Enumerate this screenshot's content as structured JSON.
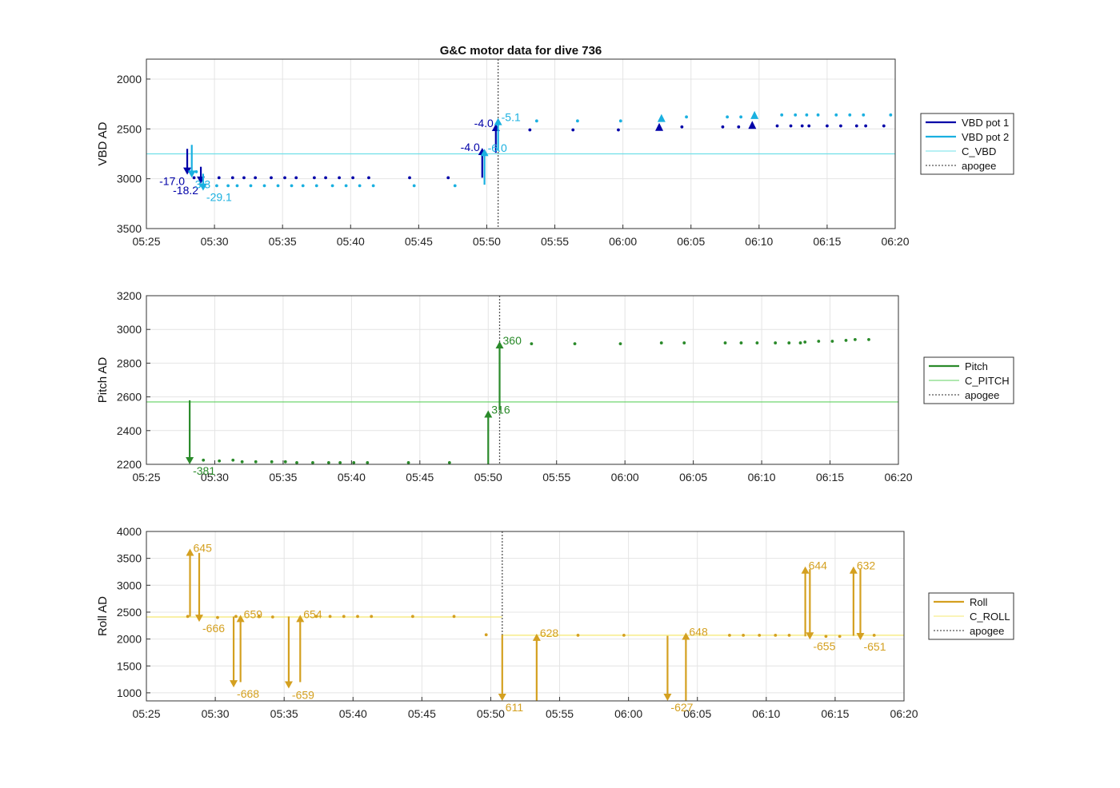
{
  "figure_title": "G&C motor data for dive 736",
  "apogee_time": "05:50:50",
  "chart_data": [
    {
      "type": "scatter",
      "title": "G&C motor data for dive 736",
      "ylabel": "VBD AD",
      "xlim": [
        "05:25",
        "06:20"
      ],
      "ylim": [
        1800,
        3500
      ],
      "y_reversed": true,
      "yticks": [
        2000,
        2500,
        3000,
        3500
      ],
      "xticks": [
        "05:25",
        "05:30",
        "05:35",
        "05:40",
        "05:45",
        "05:50",
        "05:55",
        "06:00",
        "06:05",
        "06:10",
        "06:15",
        "06:20"
      ],
      "grid": true,
      "legend_position": "right",
      "legend": [
        {
          "label": "VBD pot 1",
          "kind": "line",
          "color": "#0000a8"
        },
        {
          "label": "VBD pot 2",
          "kind": "line",
          "color": "#1ab0e0"
        },
        {
          "label": "C_VBD",
          "kind": "thin",
          "color": "#6fe0e8"
        },
        {
          "label": "apogee",
          "kind": "dotted",
          "color": "#555555"
        }
      ],
      "reference_line": {
        "name": "C_VBD",
        "y": 2750,
        "color": "#6fe0e8"
      },
      "series": [
        {
          "name": "VBD pot 1",
          "color": "#0000a8",
          "points": [
            [
              "05:28:30",
              2990
            ],
            [
              "05:30:20",
              2990
            ],
            [
              "05:31:20",
              2990
            ],
            [
              "05:32:10",
              2990
            ],
            [
              "05:33:00",
              2990
            ],
            [
              "05:34:10",
              2990
            ],
            [
              "05:35:10",
              2990
            ],
            [
              "05:36:00",
              2990
            ],
            [
              "05:37:20",
              2990
            ],
            [
              "05:38:10",
              2990
            ],
            [
              "05:39:10",
              2990
            ],
            [
              "05:40:10",
              2990
            ],
            [
              "05:41:20",
              2990
            ],
            [
              "05:44:20",
              2990
            ],
            [
              "05:47:10",
              2990
            ],
            [
              "05:53:10",
              2510
            ],
            [
              "05:56:20",
              2510
            ],
            [
              "05:59:40",
              2510
            ],
            [
              "06:04:20",
              2480
            ],
            [
              "06:07:20",
              2480
            ],
            [
              "06:08:30",
              2480
            ],
            [
              "06:11:20",
              2470
            ],
            [
              "06:12:20",
              2470
            ],
            [
              "06:13:10",
              2470
            ],
            [
              "06:13:40",
              2470
            ],
            [
              "06:15:00",
              2470
            ],
            [
              "06:16:00",
              2470
            ],
            [
              "06:17:10",
              2470
            ],
            [
              "06:17:50",
              2470
            ],
            [
              "06:19:10",
              2470
            ]
          ]
        },
        {
          "name": "VBD pot 2",
          "color": "#1ab0e0",
          "points": [
            [
              "05:28:40",
              2930
            ],
            [
              "05:30:10",
              3070
            ],
            [
              "05:31:00",
              3070
            ],
            [
              "05:31:40",
              3070
            ],
            [
              "05:32:40",
              3070
            ],
            [
              "05:33:40",
              3070
            ],
            [
              "05:34:40",
              3070
            ],
            [
              "05:35:40",
              3070
            ],
            [
              "05:36:30",
              3070
            ],
            [
              "05:37:30",
              3070
            ],
            [
              "05:38:40",
              3070
            ],
            [
              "05:39:40",
              3070
            ],
            [
              "05:40:40",
              3070
            ],
            [
              "05:41:40",
              3070
            ],
            [
              "05:44:40",
              3070
            ],
            [
              "05:47:40",
              3070
            ],
            [
              "05:53:40",
              2420
            ],
            [
              "05:56:40",
              2420
            ],
            [
              "05:59:50",
              2420
            ],
            [
              "06:04:40",
              2380
            ],
            [
              "06:07:40",
              2380
            ],
            [
              "06:08:40",
              2380
            ],
            [
              "06:11:40",
              2360
            ],
            [
              "06:12:40",
              2360
            ],
            [
              "06:13:30",
              2360
            ],
            [
              "06:14:20",
              2360
            ],
            [
              "06:15:40",
              2360
            ],
            [
              "06:16:40",
              2360
            ],
            [
              "06:17:40",
              2360
            ],
            [
              "06:19:40",
              2360
            ]
          ]
        }
      ],
      "arrows": [
        {
          "series": "VBD pot 1",
          "t": "05:28:00",
          "from": 2700,
          "to": 2960,
          "label": "-17.0",
          "label_side": "left"
        },
        {
          "series": "VBD pot 1",
          "t": "05:29:00",
          "from": 2880,
          "to": 3050,
          "label": "-18.2",
          "label_side": "left"
        },
        {
          "series": "VBD pot 2",
          "t": "05:28:20",
          "from": 2660,
          "to": 2990,
          "label": "3.3",
          "label_side": "right"
        },
        {
          "series": "VBD pot 2",
          "t": "05:29:10",
          "from": 2950,
          "to": 3120,
          "label": "-29.1",
          "label_side": "right"
        },
        {
          "series": "VBD pot 1",
          "t": "05:49:40",
          "from": 2990,
          "to": 2690,
          "label": "-4.0",
          "label_side": "left"
        },
        {
          "series": "VBD pot 1",
          "t": "05:50:40",
          "from": 2740,
          "to": 2450,
          "label": "-4.0",
          "label_side": "left"
        },
        {
          "series": "VBD pot 2",
          "t": "05:49:50",
          "from": 3060,
          "to": 2700,
          "label": "-6.0",
          "label_side": "right"
        },
        {
          "series": "VBD pot 2",
          "t": "05:50:50",
          "from": 2720,
          "to": 2390,
          "label": "-5.1",
          "label_side": "right"
        }
      ],
      "triangles": [
        {
          "series": "VBD pot 1",
          "t": "06:02:40",
          "y": 2480
        },
        {
          "series": "VBD pot 1",
          "t": "06:09:30",
          "y": 2460
        },
        {
          "series": "VBD pot 2",
          "t": "06:02:50",
          "y": 2390
        },
        {
          "series": "VBD pot 2",
          "t": "06:09:40",
          "y": 2360
        }
      ]
    },
    {
      "type": "scatter",
      "ylabel": "Pitch AD",
      "xlim": [
        "05:25",
        "06:20"
      ],
      "ylim": [
        2200,
        3200
      ],
      "yticks": [
        2200,
        2400,
        2600,
        2800,
        3000,
        3200
      ],
      "xticks": [
        "05:25",
        "05:30",
        "05:35",
        "05:40",
        "05:45",
        "05:50",
        "05:55",
        "06:00",
        "06:05",
        "06:10",
        "06:15",
        "06:20"
      ],
      "grid": true,
      "legend_position": "right",
      "legend": [
        {
          "label": "Pitch",
          "kind": "line",
          "color": "#2a8a2a"
        },
        {
          "label": "C_PITCH",
          "kind": "thin",
          "color": "#60d060"
        },
        {
          "label": "apogee",
          "kind": "dotted",
          "color": "#555555"
        }
      ],
      "reference_line": {
        "name": "C_PITCH",
        "y": 2570,
        "color": "#60d060"
      },
      "series": [
        {
          "name": "Pitch",
          "color": "#2a8a2a",
          "points": [
            [
              "05:29:10",
              2225
            ],
            [
              "05:30:20",
              2220
            ],
            [
              "05:31:20",
              2225
            ],
            [
              "05:32:00",
              2215
            ],
            [
              "05:33:00",
              2215
            ],
            [
              "05:34:10",
              2215
            ],
            [
              "05:35:10",
              2215
            ],
            [
              "05:36:00",
              2210
            ],
            [
              "05:37:10",
              2210
            ],
            [
              "05:38:20",
              2210
            ],
            [
              "05:39:10",
              2210
            ],
            [
              "05:40:10",
              2210
            ],
            [
              "05:41:10",
              2210
            ],
            [
              "05:44:10",
              2210
            ],
            [
              "05:47:10",
              2210
            ],
            [
              "05:53:10",
              2915
            ],
            [
              "05:56:20",
              2915
            ],
            [
              "05:59:40",
              2915
            ],
            [
              "06:02:40",
              2920
            ],
            [
              "06:04:20",
              2920
            ],
            [
              "06:07:20",
              2920
            ],
            [
              "06:08:30",
              2920
            ],
            [
              "06:09:40",
              2920
            ],
            [
              "06:11:00",
              2920
            ],
            [
              "06:12:00",
              2920
            ],
            [
              "06:12:50",
              2920
            ],
            [
              "06:13:10",
              2925
            ],
            [
              "06:14:10",
              2930
            ],
            [
              "06:15:10",
              2930
            ],
            [
              "06:16:10",
              2935
            ],
            [
              "06:16:50",
              2940
            ],
            [
              "06:17:50",
              2940
            ]
          ]
        }
      ],
      "arrows": [
        {
          "series": "Pitch",
          "t": "05:28:10",
          "from": 2580,
          "to": 2200,
          "label": "-381",
          "label_side": "right"
        },
        {
          "series": "Pitch",
          "t": "05:50:00",
          "from": 2200,
          "to": 2520,
          "label": "316",
          "label_side": "right"
        },
        {
          "series": "Pitch",
          "t": "05:50:50",
          "from": 2520,
          "to": 2930,
          "label": "360",
          "label_side": "right"
        }
      ]
    },
    {
      "type": "scatter",
      "ylabel": "Roll AD",
      "xlim": [
        "05:25",
        "06:20"
      ],
      "ylim": [
        850,
        4000
      ],
      "yticks": [
        1000,
        1500,
        2000,
        2500,
        3000,
        3500,
        4000
      ],
      "xticks": [
        "05:25",
        "05:30",
        "05:35",
        "05:40",
        "05:45",
        "05:50",
        "05:55",
        "06:00",
        "06:05",
        "06:10",
        "06:15",
        "06:20"
      ],
      "grid": true,
      "legend_position": "right",
      "legend": [
        {
          "label": "Roll",
          "kind": "line",
          "color": "#d4a020"
        },
        {
          "label": "C_ROLL",
          "kind": "thin",
          "color": "#f5e870"
        },
        {
          "label": "apogee",
          "kind": "dotted",
          "color": "#555555"
        }
      ],
      "reference_segments": [
        {
          "name": "C_ROLL",
          "t0": "05:25:00",
          "t1": "05:50:50",
          "y": 2410
        },
        {
          "name": "C_ROLL",
          "t0": "05:50:50",
          "t1": "06:20:00",
          "y": 2070
        }
      ],
      "series": [
        {
          "name": "Roll",
          "color": "#d4a020",
          "points": [
            [
              "05:28:00",
              2420
            ],
            [
              "05:30:10",
              2400
            ],
            [
              "05:31:30",
              2420
            ],
            [
              "05:33:10",
              2420
            ],
            [
              "05:34:10",
              2410
            ],
            [
              "05:37:20",
              2420
            ],
            [
              "05:38:20",
              2420
            ],
            [
              "05:39:20",
              2420
            ],
            [
              "05:40:20",
              2420
            ],
            [
              "05:41:20",
              2420
            ],
            [
              "05:44:20",
              2420
            ],
            [
              "05:47:20",
              2420
            ],
            [
              "05:49:40",
              2080
            ],
            [
              "05:56:20",
              2070
            ],
            [
              "05:59:40",
              2070
            ],
            [
              "06:07:20",
              2070
            ],
            [
              "06:08:20",
              2070
            ],
            [
              "06:09:30",
              2070
            ],
            [
              "06:10:40",
              2070
            ],
            [
              "06:11:40",
              2070
            ],
            [
              "06:14:20",
              2050
            ],
            [
              "06:15:20",
              2050
            ],
            [
              "06:17:50",
              2070
            ]
          ]
        }
      ],
      "arrows": [
        {
          "series": "Roll",
          "t": "05:28:10",
          "from": 2420,
          "to": 3680,
          "label": "645",
          "label_side": "right"
        },
        {
          "series": "Roll",
          "t": "05:28:50",
          "from": 3600,
          "to": 2320,
          "label": "-666",
          "label_side": "right"
        },
        {
          "series": "Roll",
          "t": "05:31:20",
          "from": 2420,
          "to": 1100,
          "label": "-668",
          "label_side": "right"
        },
        {
          "series": "Roll",
          "t": "05:31:50",
          "from": 1200,
          "to": 2450,
          "label": "659",
          "label_side": "right"
        },
        {
          "series": "Roll",
          "t": "05:35:20",
          "from": 2420,
          "to": 1080,
          "label": "-659",
          "label_side": "right"
        },
        {
          "series": "Roll",
          "t": "05:36:10",
          "from": 1200,
          "to": 2450,
          "label": "654",
          "label_side": "right"
        },
        {
          "series": "Roll",
          "t": "05:50:50",
          "from": 2080,
          "to": 830,
          "label": "611",
          "label_side": "right"
        },
        {
          "series": "Roll",
          "t": "05:53:20",
          "from": 850,
          "to": 2100,
          "label": "628",
          "label_side": "right"
        },
        {
          "series": "Roll",
          "t": "06:02:50",
          "from": 2060,
          "to": 830,
          "label": "-627",
          "label_side": "right"
        },
        {
          "series": "Roll",
          "t": "06:04:10",
          "from": 850,
          "to": 2120,
          "label": "648",
          "label_side": "right"
        },
        {
          "series": "Roll",
          "t": "06:12:50",
          "from": 2050,
          "to": 3350,
          "label": "644",
          "label_side": "right"
        },
        {
          "series": "Roll",
          "t": "06:13:10",
          "from": 3300,
          "to": 1990,
          "label": "-655",
          "label_side": "right"
        },
        {
          "series": "Roll",
          "t": "06:16:20",
          "from": 2060,
          "to": 3350,
          "label": "632",
          "label_side": "right"
        },
        {
          "series": "Roll",
          "t": "06:16:50",
          "from": 3300,
          "to": 1980,
          "label": "-651",
          "label_side": "right"
        }
      ]
    }
  ]
}
